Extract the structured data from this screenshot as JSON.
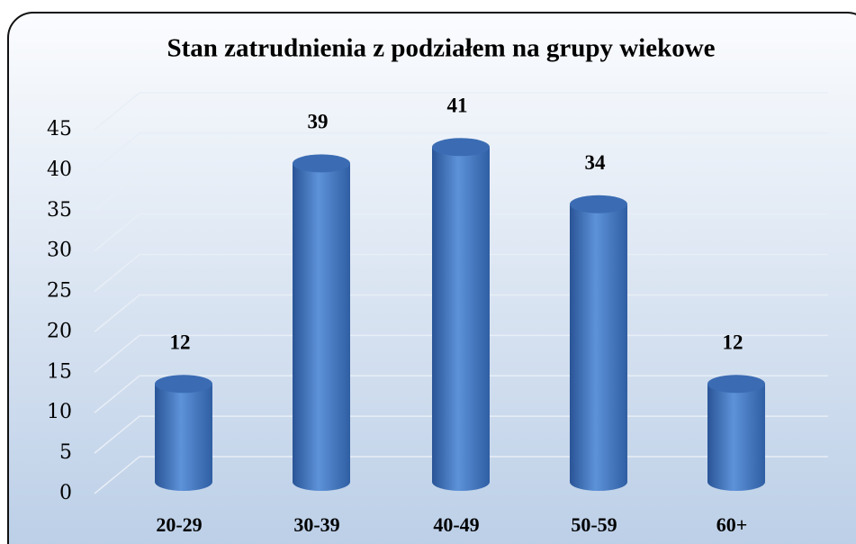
{
  "chart_data": {
    "type": "bar3d",
    "title": "Stan zatrudnienia z podziałem na grupy wiekowe",
    "categories": [
      "20-29",
      "30-39",
      "40-49",
      "50-59",
      "60+"
    ],
    "values": [
      12,
      39,
      41,
      34,
      12
    ],
    "color": "#4a7ec8",
    "ylim": [
      0,
      45
    ],
    "yticks": [
      0,
      5,
      10,
      15,
      20,
      25,
      30,
      35,
      40,
      45
    ],
    "grid": true
  }
}
